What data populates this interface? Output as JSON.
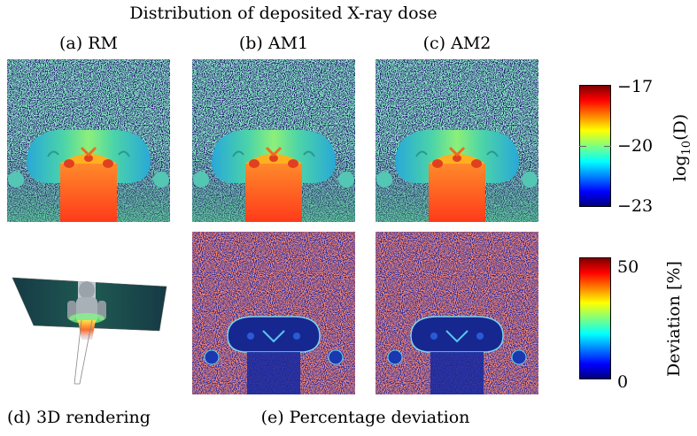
{
  "title": "Distribution of deposited X-ray dose",
  "panels": {
    "a": "(a) RM",
    "b": "(b) AM1",
    "c": "(c) AM2",
    "d": "(d) 3D rendering",
    "e": "(e) Percentage deviation"
  },
  "colorbar_dose": {
    "label": "log10(D)",
    "label_base": "log",
    "label_sub": "10",
    "label_arg": "(D)",
    "ticks": [
      "−17",
      "−20",
      "−23"
    ],
    "tick_values": [
      -17,
      -20,
      -23
    ],
    "range": [
      -23,
      -17
    ]
  },
  "colorbar_dev": {
    "label": "Deviation [%]",
    "ticks": [
      "50",
      "0"
    ],
    "tick_values": [
      50,
      0
    ],
    "range": [
      0,
      50
    ]
  },
  "colors": {
    "background_dark": "#2a1675",
    "jet": [
      "#00007f",
      "#0000ff",
      "#00ffff",
      "#7fff7f",
      "#ffff00",
      "#ff0000",
      "#7f0000"
    ]
  }
}
